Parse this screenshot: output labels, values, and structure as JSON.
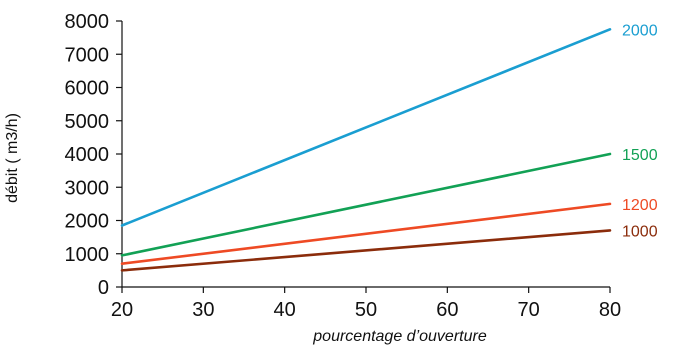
{
  "chart_data": {
    "type": "line",
    "title": "",
    "xlabel": "pourcentage d’ouverture",
    "ylabel": "débit ( m3/h)",
    "xlim": [
      20,
      80
    ],
    "ylim": [
      0,
      8000
    ],
    "xticks": [
      "20",
      "30",
      "40",
      "50",
      "60",
      "70",
      "80"
    ],
    "yticks": [
      "0",
      "1000",
      "2000",
      "3000",
      "4000",
      "5000",
      "6000",
      "7000",
      "8000"
    ],
    "grid": false,
    "x": [
      20,
      80
    ],
    "series": [
      {
        "name": "2000",
        "color": "#1a9ed1",
        "values": [
          1850,
          7750
        ]
      },
      {
        "name": "1500",
        "color": "#12a155",
        "values": [
          950,
          4000
        ]
      },
      {
        "name": "1200",
        "color": "#ee4a24",
        "values": [
          700,
          2500
        ]
      },
      {
        "name": "1000",
        "color": "#8b2c0b",
        "values": [
          500,
          1700
        ]
      }
    ]
  }
}
